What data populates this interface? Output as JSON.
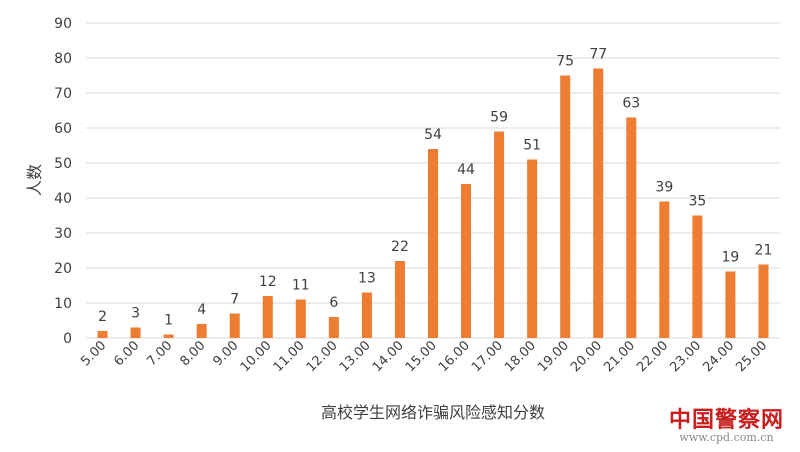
{
  "chart_data": {
    "type": "bar",
    "categories": [
      "5.00",
      "6.00",
      "7.00",
      "8.00",
      "9.00",
      "10.00",
      "11.00",
      "12.00",
      "13.00",
      "14.00",
      "15.00",
      "16.00",
      "17.00",
      "18.00",
      "19.00",
      "20.00",
      "21.00",
      "22.00",
      "23.00",
      "24.00",
      "25.00"
    ],
    "values": [
      2,
      3,
      1,
      4,
      7,
      12,
      11,
      6,
      13,
      22,
      54,
      44,
      59,
      51,
      75,
      77,
      63,
      39,
      35,
      19,
      21
    ],
    "data_labels": [
      "2",
      "3",
      "1",
      "4",
      "7",
      "12",
      "11",
      "6",
      "13",
      "22",
      "54",
      "44",
      "59",
      "51",
      "75",
      "77",
      "63",
      "39",
      "35",
      "19",
      "21"
    ],
    "title": "",
    "xlabel": "高校学生网络诈骗风险感知分数",
    "ylabel": "人数",
    "ylim": [
      0,
      90
    ],
    "yticks": [
      "0",
      "10",
      "20",
      "30",
      "40",
      "50",
      "60",
      "70",
      "80",
      "90"
    ],
    "grid": true,
    "legend": "none",
    "bar_color": "#ed7d31",
    "grid_color": "#d9d9d9",
    "text_color": "#404040"
  },
  "watermark": {
    "name": "中国警察网",
    "url": "www.cpd.com.cn",
    "color": "#c81e1e"
  }
}
